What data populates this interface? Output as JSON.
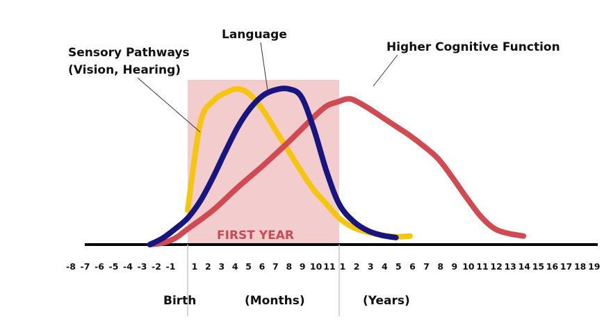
{
  "chart_data": {
    "type": "line",
    "highlight": {
      "label": "FIRST YEAR",
      "from": "Birth",
      "to": "1 year",
      "color": "#f3cdcd",
      "label_color": "#c74b57"
    },
    "axis": {
      "ticks_before_birth": [
        "-8",
        "-7",
        "-6",
        "-5",
        "-4",
        "-3",
        "-2",
        "-1"
      ],
      "ticks_months": [
        "1",
        "2",
        "3",
        "4",
        "5",
        "6",
        "7",
        "8",
        "9",
        "10",
        "11"
      ],
      "ticks_years": [
        "1",
        "2",
        "3",
        "4",
        "5",
        "6",
        "7",
        "8",
        "9",
        "10",
        "11",
        "12",
        "13",
        "14",
        "15",
        "16",
        "17",
        "18",
        "19"
      ],
      "labels": {
        "birth": "Birth",
        "months": "(Months)",
        "years": "(Years)"
      }
    },
    "series": [
      {
        "name": "Sensory Pathways (Vision, Hearing)",
        "label_lines": [
          "Sensory Pathways",
          "(Vision, Hearing)"
        ],
        "color": "#f6c510",
        "points": [
          [
            "m0",
            0.22
          ],
          [
            "m1",
            0.78
          ],
          [
            "m2",
            0.92
          ],
          [
            "m3",
            0.975
          ],
          [
            "m4",
            1.0
          ],
          [
            "m5",
            0.96
          ],
          [
            "m6",
            0.86
          ],
          [
            "m7",
            0.73
          ],
          [
            "m8",
            0.6
          ],
          [
            "m9",
            0.47
          ],
          [
            "m10",
            0.35
          ],
          [
            "m11",
            0.26
          ],
          [
            "y1",
            0.17
          ],
          [
            "y2",
            0.11
          ],
          [
            "y3",
            0.08
          ],
          [
            "y4",
            0.06
          ],
          [
            "y5",
            0.05
          ],
          [
            "y6",
            0.055
          ]
        ]
      },
      {
        "name": "Language",
        "label_lines": [
          "Language"
        ],
        "color": "#17157f",
        "points": [
          [
            "m-3",
            0.0
          ],
          [
            "m-2",
            0.04
          ],
          [
            "m-1",
            0.1
          ],
          [
            "m0",
            0.17
          ],
          [
            "m1",
            0.28
          ],
          [
            "m2",
            0.43
          ],
          [
            "m3",
            0.6
          ],
          [
            "m4",
            0.76
          ],
          [
            "m5",
            0.88
          ],
          [
            "m6",
            0.96
          ],
          [
            "m7",
            0.995
          ],
          [
            "m8",
            1.0
          ],
          [
            "m9",
            0.95
          ],
          [
            "m10",
            0.74
          ],
          [
            "m11",
            0.47
          ],
          [
            "y1",
            0.26
          ],
          [
            "y2",
            0.15
          ],
          [
            "y3",
            0.09
          ],
          [
            "y4",
            0.06
          ],
          [
            "y5",
            0.045
          ]
        ]
      },
      {
        "name": "Higher Cognitive Function",
        "label_lines": [
          "Higher Cognitive Function"
        ],
        "color": "#cf4a51",
        "points": [
          [
            "m-3",
            0.0
          ],
          [
            "m-2",
            0.01
          ],
          [
            "m-1",
            0.04
          ],
          [
            "m0",
            0.1
          ],
          [
            "m2",
            0.22
          ],
          [
            "m4",
            0.37
          ],
          [
            "m6",
            0.51
          ],
          [
            "m8",
            0.66
          ],
          [
            "m10",
            0.82
          ],
          [
            "m11",
            0.89
          ],
          [
            "y1",
            0.92
          ],
          [
            "y1.5",
            0.935
          ],
          [
            "y2",
            0.93
          ],
          [
            "y3",
            0.88
          ],
          [
            "y4",
            0.82
          ],
          [
            "y5",
            0.76
          ],
          [
            "y6",
            0.7
          ],
          [
            "y7",
            0.63
          ],
          [
            "y8",
            0.55
          ],
          [
            "y9",
            0.43
          ],
          [
            "y10",
            0.3
          ],
          [
            "y11",
            0.18
          ],
          [
            "y12",
            0.1
          ],
          [
            "y13",
            0.07
          ],
          [
            "y14",
            0.055
          ]
        ]
      }
    ]
  }
}
